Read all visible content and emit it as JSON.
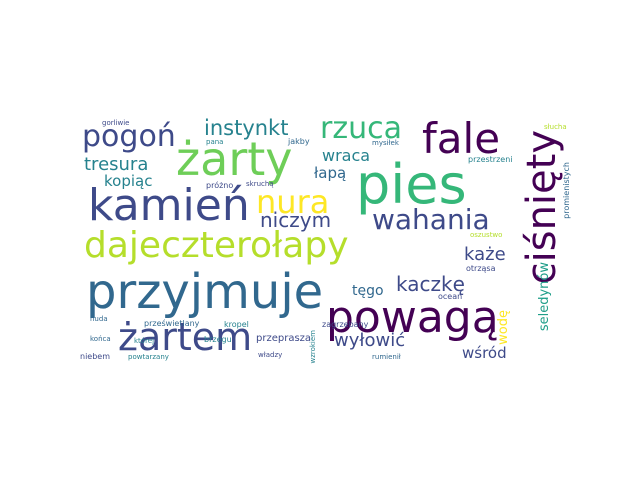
{
  "palette": {
    "dark_purple": "#440154",
    "indigo": "#3e4a89",
    "blue": "#31688e",
    "teal": "#26828e",
    "green_teal": "#1f9e89",
    "green": "#35b779",
    "light_green": "#6ece58",
    "lime": "#b5de2b",
    "yellow": "#fde725"
  },
  "words": {
    "pies": "pies",
    "cisniety": "ciśnięty",
    "przyjmuje": "przyjmuje",
    "dajeczterolapy": "dajeczterołapy",
    "kamien": "kamień",
    "zarty": "żarty",
    "powaga": "powagą",
    "zartem": "żartem",
    "fale": "fale",
    "rzuca": "rzuca",
    "pogon": "pogoń",
    "nura": "nura",
    "wahania": "wahania",
    "instynkt": "instynkt",
    "tresura": "tresura",
    "kopiac": "kopiąc",
    "wraca": "wraca",
    "lapa": "łapą",
    "niczym": "niczym",
    "kaze": "każe",
    "kaczke": "kaczkę",
    "tego": "tęgo",
    "wylowic": "wyłowić",
    "wsrod": "wśród",
    "wode": "wodę",
    "seledynow": "seledynów",
    "promienistych": "promienistych",
    "przestrzeni": "przestrzeni",
    "mysilek": "mysiłek",
    "slucha": "słucha",
    "gorliwie": "gorliwie",
    "pana": "pana",
    "jakby": "jakby",
    "prozno": "próżno",
    "skrucha": "skruchą",
    "brzegu": "brzegu",
    "konca": "końca",
    "ktorej": "której",
    "niebem": "niebem",
    "powtarzany": "powtarzany",
    "nuda": "nuda",
    "przeswietlany": "prześwietlany",
    "kropel": "kropel",
    "przeprasza": "przeprasza",
    "zagrzebany": "zagrzebany",
    "wzrokiem": "wzrokiem",
    "rumienil": "rumienił",
    "wladzy": "władzy",
    "ocean": "ocean",
    "otrzasa": "otrząsa",
    "oszustwo": "oszustwo"
  }
}
